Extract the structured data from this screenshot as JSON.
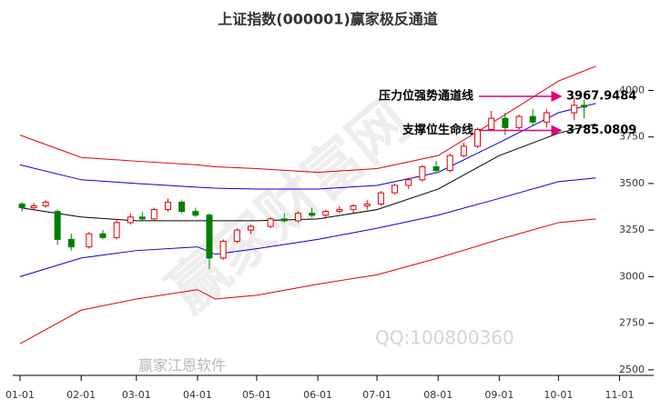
{
  "chart_data": {
    "type": "candlestick",
    "title": "上证指数(000001)赢家极反通道",
    "xlim": [
      "01-01",
      "11-10"
    ],
    "xticks": [
      "01-01",
      "02-01",
      "03-01",
      "04-01",
      "05-01",
      "06-01",
      "07-01",
      "08-01",
      "09-01",
      "10-01",
      "11-01"
    ],
    "ylim": [
      2470,
      4290
    ],
    "yticks": [
      2500,
      2750,
      3000,
      3250,
      3500,
      3750,
      4000
    ],
    "up_color": "#e00000",
    "down_color": "#008000",
    "x": [
      "01-02",
      "01-08",
      "01-14",
      "01-20",
      "01-27",
      "02-05",
      "02-12",
      "02-19",
      "02-26",
      "03-04",
      "03-10",
      "03-17",
      "03-24",
      "03-31",
      "04-07",
      "04-14",
      "04-21",
      "04-28",
      "05-08",
      "05-15",
      "05-22",
      "05-29",
      "06-05",
      "06-12",
      "06-19",
      "06-26",
      "07-03",
      "07-10",
      "07-17",
      "07-24",
      "07-31",
      "08-07",
      "08-14",
      "08-21",
      "08-28",
      "09-04",
      "09-11",
      "09-18",
      "09-25",
      "10-09",
      "10-14"
    ],
    "open": [
      3390,
      3370,
      3380,
      3350,
      3200,
      3160,
      3230,
      3210,
      3290,
      3320,
      3310,
      3360,
      3400,
      3350,
      3330,
      3100,
      3190,
      3250,
      3270,
      3310,
      3300,
      3340,
      3330,
      3350,
      3360,
      3380,
      3390,
      3450,
      3490,
      3520,
      3590,
      3570,
      3650,
      3700,
      3790,
      3850,
      3800,
      3860,
      3830,
      3880,
      3920
    ],
    "high": [
      3400,
      3395,
      3410,
      3360,
      3230,
      3240,
      3250,
      3310,
      3340,
      3350,
      3370,
      3420,
      3410,
      3370,
      3340,
      3200,
      3260,
      3280,
      3320,
      3340,
      3350,
      3370,
      3360,
      3380,
      3390,
      3410,
      3460,
      3500,
      3530,
      3600,
      3620,
      3660,
      3720,
      3800,
      3890,
      3880,
      3870,
      3900,
      3900,
      3960,
      3950
    ],
    "low": [
      3350,
      3355,
      3370,
      3170,
      3140,
      3150,
      3200,
      3200,
      3280,
      3300,
      3300,
      3350,
      3340,
      3320,
      3040,
      3090,
      3180,
      3230,
      3260,
      3290,
      3290,
      3320,
      3310,
      3340,
      3340,
      3360,
      3380,
      3440,
      3470,
      3510,
      3560,
      3560,
      3640,
      3690,
      3780,
      3760,
      3790,
      3810,
      3800,
      3840,
      3850
    ],
    "close": [
      3370,
      3380,
      3400,
      3200,
      3160,
      3230,
      3210,
      3290,
      3320,
      3310,
      3360,
      3400,
      3350,
      3330,
      3100,
      3190,
      3250,
      3270,
      3310,
      3300,
      3340,
      3330,
      3350,
      3360,
      3380,
      3390,
      3450,
      3490,
      3520,
      3590,
      3570,
      3650,
      3700,
      3790,
      3850,
      3800,
      3860,
      3830,
      3880,
      3920,
      3910
    ],
    "bands": {
      "x": [
        "01-01",
        "02-01",
        "03-01",
        "04-01",
        "04-10",
        "05-01",
        "06-01",
        "07-01",
        "08-01",
        "09-01",
        "10-01",
        "10-20"
      ],
      "series": [
        {
          "color": "#e00000",
          "values": [
            3760,
            3640,
            3620,
            3600,
            3590,
            3580,
            3560,
            3580,
            3650,
            3850,
            4050,
            4130
          ]
        },
        {
          "color": "#0000dd",
          "values": [
            3600,
            3520,
            3500,
            3480,
            3475,
            3470,
            3470,
            3490,
            3560,
            3720,
            3880,
            3930
          ]
        },
        {
          "color": "#000000",
          "values": [
            3370,
            3320,
            3300,
            3300,
            3300,
            3300,
            3310,
            3360,
            3470,
            3650,
            3770,
            3820
          ]
        },
        {
          "color": "#0000dd",
          "values": [
            3000,
            3100,
            3140,
            3160,
            3120,
            3150,
            3200,
            3260,
            3330,
            3420,
            3510,
            3530
          ]
        },
        {
          "color": "#e00000",
          "values": [
            2640,
            2820,
            2880,
            2930,
            2880,
            2900,
            2960,
            3010,
            3100,
            3200,
            3290,
            3310
          ]
        }
      ]
    },
    "annotations": [
      {
        "text": "压力位强势通道线",
        "value": 3967.9484
      },
      {
        "text": "支撑位生命线",
        "value": 3785.0809
      }
    ],
    "watermarks": [
      "赢家财富网",
      "赢家江恩软件",
      "QQ:100800360"
    ]
  }
}
